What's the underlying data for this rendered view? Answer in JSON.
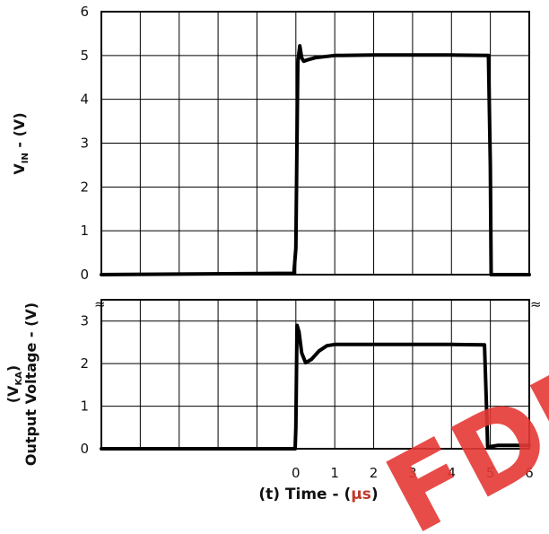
{
  "chart_data": [
    {
      "type": "line",
      "ylabel": "V_IN - (V)",
      "ylabel_main": "V",
      "ylabel_sub": "IN",
      "ylabel_rest": " - (V)",
      "ylim": [
        0,
        6
      ],
      "yticks": [
        "0",
        "1",
        "2",
        "3",
        "4",
        "5",
        "6"
      ],
      "xlim": [
        -5,
        6
      ],
      "grid": true,
      "series": [
        {
          "x": [
            -5,
            -0.05,
            0.0,
            0.05,
            0.1,
            0.15,
            0.2,
            0.3,
            0.5,
            1.0,
            2.0,
            4.0,
            4.95,
            5.0,
            5.02,
            6.0
          ],
          "y": [
            0,
            0.03,
            0.6,
            4.85,
            5.22,
            4.95,
            4.87,
            4.9,
            4.95,
            5.0,
            5.01,
            5.01,
            5.0,
            2.5,
            0,
            0
          ]
        }
      ]
    },
    {
      "type": "line",
      "ylabel_main_top": "(V",
      "ylabel_sub": "KA",
      "ylabel_close": ")",
      "ylabel_line2": "Output Voltage - (V)",
      "ylim": [
        0,
        3.5
      ],
      "yticks": [
        "0",
        "1",
        "2",
        "3"
      ],
      "xlim": [
        -5,
        6
      ],
      "xticks": [
        "0",
        "1",
        "2",
        "3",
        "4",
        "5",
        "6"
      ],
      "xlabel": "(t)  Time - (µs)",
      "xlabel_main": "(t)  Time - (",
      "xlabel_unit": "µs",
      "xlabel_close": ")",
      "grid": true,
      "series": [
        {
          "x": [
            -5,
            -0.02,
            0.0,
            0.03,
            0.08,
            0.15,
            0.25,
            0.4,
            0.6,
            0.8,
            1.0,
            2.0,
            4.0,
            4.85,
            4.9,
            4.93,
            5.0,
            5.2,
            6.0
          ],
          "y": [
            0,
            0,
            0.5,
            2.9,
            2.75,
            2.25,
            2.02,
            2.1,
            2.3,
            2.42,
            2.45,
            2.45,
            2.45,
            2.44,
            1.0,
            0.05,
            0.05,
            0.08,
            0.08
          ]
        }
      ]
    }
  ],
  "break_marks": "≈",
  "watermark": "FDM"
}
